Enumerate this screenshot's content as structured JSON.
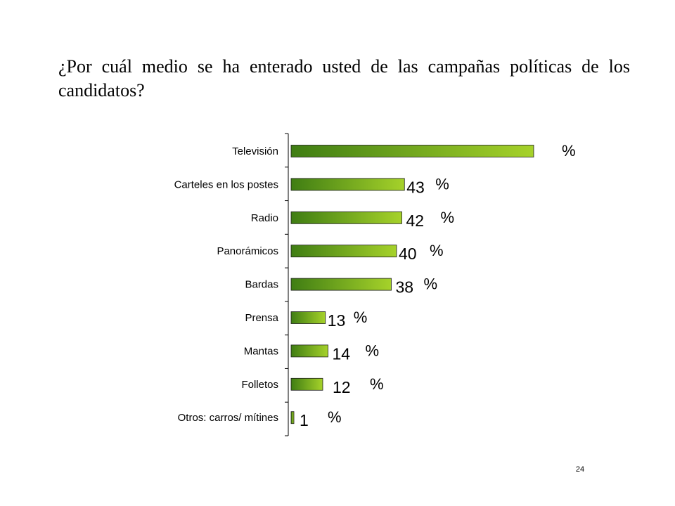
{
  "slide": {
    "title": "¿Por cuál medio se ha enterado usted de las campañas políticas de los candidatos?",
    "page_number": "24"
  },
  "chart_data": {
    "type": "bar",
    "orientation": "horizontal",
    "categories": [
      "Televisión",
      "Carteles en los postes",
      "Radio",
      "Panorámicos",
      "Bardas",
      "Prensa",
      "Mantas",
      "Folletos",
      "Otros: carros/ mítines"
    ],
    "values": [
      92,
      43,
      42,
      40,
      38,
      13,
      14,
      12,
      1
    ],
    "value_labels": [
      "",
      "43",
      "42",
      "40",
      "38",
      "13",
      "14",
      "12",
      "1"
    ],
    "unit_label": "%",
    "xlim": [
      0,
      100
    ],
    "grid": false,
    "legend": "none",
    "colors": {
      "bar_start": "#3f7d13",
      "bar_end": "#a6d22a",
      "bar_outline": "#1b1b1b",
      "axis": "#000000"
    }
  }
}
